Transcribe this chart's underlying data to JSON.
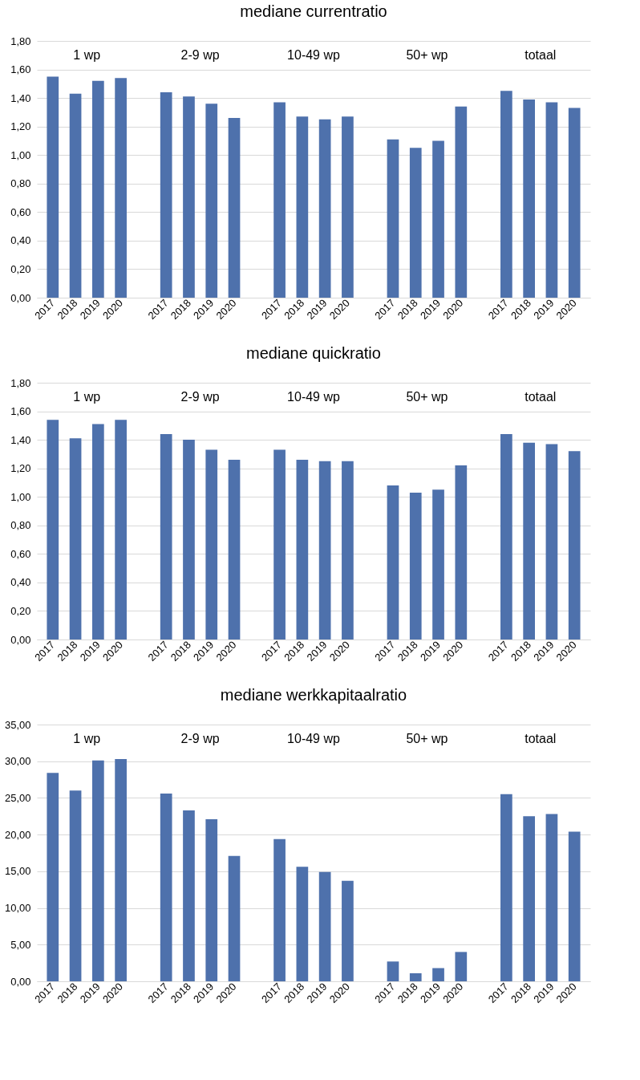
{
  "chart_data": [
    {
      "type": "bar",
      "title": "mediane currentratio",
      "categories": [
        "2017",
        "2018",
        "2019",
        "2020",
        null,
        "2017",
        "2018",
        "2019",
        "2020",
        null,
        "2017",
        "2018",
        "2019",
        "2020",
        null,
        "2017",
        "2018",
        "2019",
        "2020",
        null,
        "2017",
        "2018",
        "2019",
        "2020"
      ],
      "values": [
        1.55,
        1.43,
        1.52,
        1.54,
        null,
        1.44,
        1.41,
        1.36,
        1.26,
        null,
        1.37,
        1.27,
        1.25,
        1.27,
        null,
        1.11,
        1.05,
        1.1,
        1.34,
        null,
        1.45,
        1.39,
        1.37,
        1.33
      ],
      "color": "#4e71ac",
      "ylim": [
        0,
        1.8
      ],
      "yticks": [
        {
          "value": 0,
          "label": "0,00"
        },
        {
          "value": 0.2,
          "label": "0,20"
        },
        {
          "value": 0.4,
          "label": "0,40"
        },
        {
          "value": 0.6,
          "label": "0,60"
        },
        {
          "value": 0.8,
          "label": "0,80"
        },
        {
          "value": 1.0,
          "label": "1,00"
        },
        {
          "value": 1.2,
          "label": "1,20"
        },
        {
          "value": 1.4,
          "label": "1,40"
        },
        {
          "value": 1.6,
          "label": "1,60"
        },
        {
          "value": 1.8,
          "label": "1,80"
        }
      ],
      "grid": "y",
      "annotations": [
        "1 wp",
        "2-9 wp",
        "10-49 wp",
        "50+ wp",
        "totaal"
      ]
    },
    {
      "type": "bar",
      "title": "mediane quickratio",
      "categories": [
        "2017",
        "2018",
        "2019",
        "2020",
        null,
        "2017",
        "2018",
        "2019",
        "2020",
        null,
        "2017",
        "2018",
        "2019",
        "2020",
        null,
        "2017",
        "2018",
        "2019",
        "2020",
        null,
        "2017",
        "2018",
        "2019",
        "2020"
      ],
      "values": [
        1.54,
        1.41,
        1.51,
        1.54,
        null,
        1.44,
        1.4,
        1.33,
        1.26,
        null,
        1.33,
        1.26,
        1.25,
        1.25,
        null,
        1.08,
        1.03,
        1.05,
        1.22,
        null,
        1.44,
        1.38,
        1.37,
        1.32
      ],
      "color": "#4e71ac",
      "ylim": [
        0,
        1.8
      ],
      "yticks": [
        {
          "value": 0,
          "label": "0,00"
        },
        {
          "value": 0.2,
          "label": "0,20"
        },
        {
          "value": 0.4,
          "label": "0,40"
        },
        {
          "value": 0.6,
          "label": "0,60"
        },
        {
          "value": 0.8,
          "label": "0,80"
        },
        {
          "value": 1.0,
          "label": "1,00"
        },
        {
          "value": 1.2,
          "label": "1,20"
        },
        {
          "value": 1.4,
          "label": "1,40"
        },
        {
          "value": 1.6,
          "label": "1,60"
        },
        {
          "value": 1.8,
          "label": "1,80"
        }
      ],
      "grid": "y",
      "annotations": [
        "1 wp",
        "2-9 wp",
        "10-49 wp",
        "50+ wp",
        "totaal"
      ]
    },
    {
      "type": "bar",
      "title": "mediane werkkapitaalratio",
      "categories": [
        "2017",
        "2018",
        "2019",
        "2020",
        null,
        "2017",
        "2018",
        "2019",
        "2020",
        null,
        "2017",
        "2018",
        "2019",
        "2020",
        null,
        "2017",
        "2018",
        "2019",
        "2020",
        null,
        "2017",
        "2018",
        "2019",
        "2020"
      ],
      "values": [
        28.4,
        26.0,
        30.1,
        30.3,
        null,
        25.6,
        23.3,
        22.1,
        17.1,
        null,
        19.4,
        15.6,
        14.9,
        13.7,
        null,
        2.7,
        1.1,
        1.8,
        4.0,
        null,
        25.5,
        22.5,
        22.8,
        20.4
      ],
      "color": "#4e71ac",
      "ylim": [
        0,
        35
      ],
      "yticks": [
        {
          "value": 0,
          "label": "0,00"
        },
        {
          "value": 5,
          "label": "5,00"
        },
        {
          "value": 10,
          "label": "10,00"
        },
        {
          "value": 15,
          "label": "15,00"
        },
        {
          "value": 20,
          "label": "20,00"
        },
        {
          "value": 25,
          "label": "25,00"
        },
        {
          "value": 30,
          "label": "30,00"
        },
        {
          "value": 35,
          "label": "35,00"
        }
      ],
      "grid": "y",
      "annotations": [
        "1 wp",
        "2-9 wp",
        "10-49 wp",
        "50+ wp",
        "totaal"
      ]
    }
  ]
}
